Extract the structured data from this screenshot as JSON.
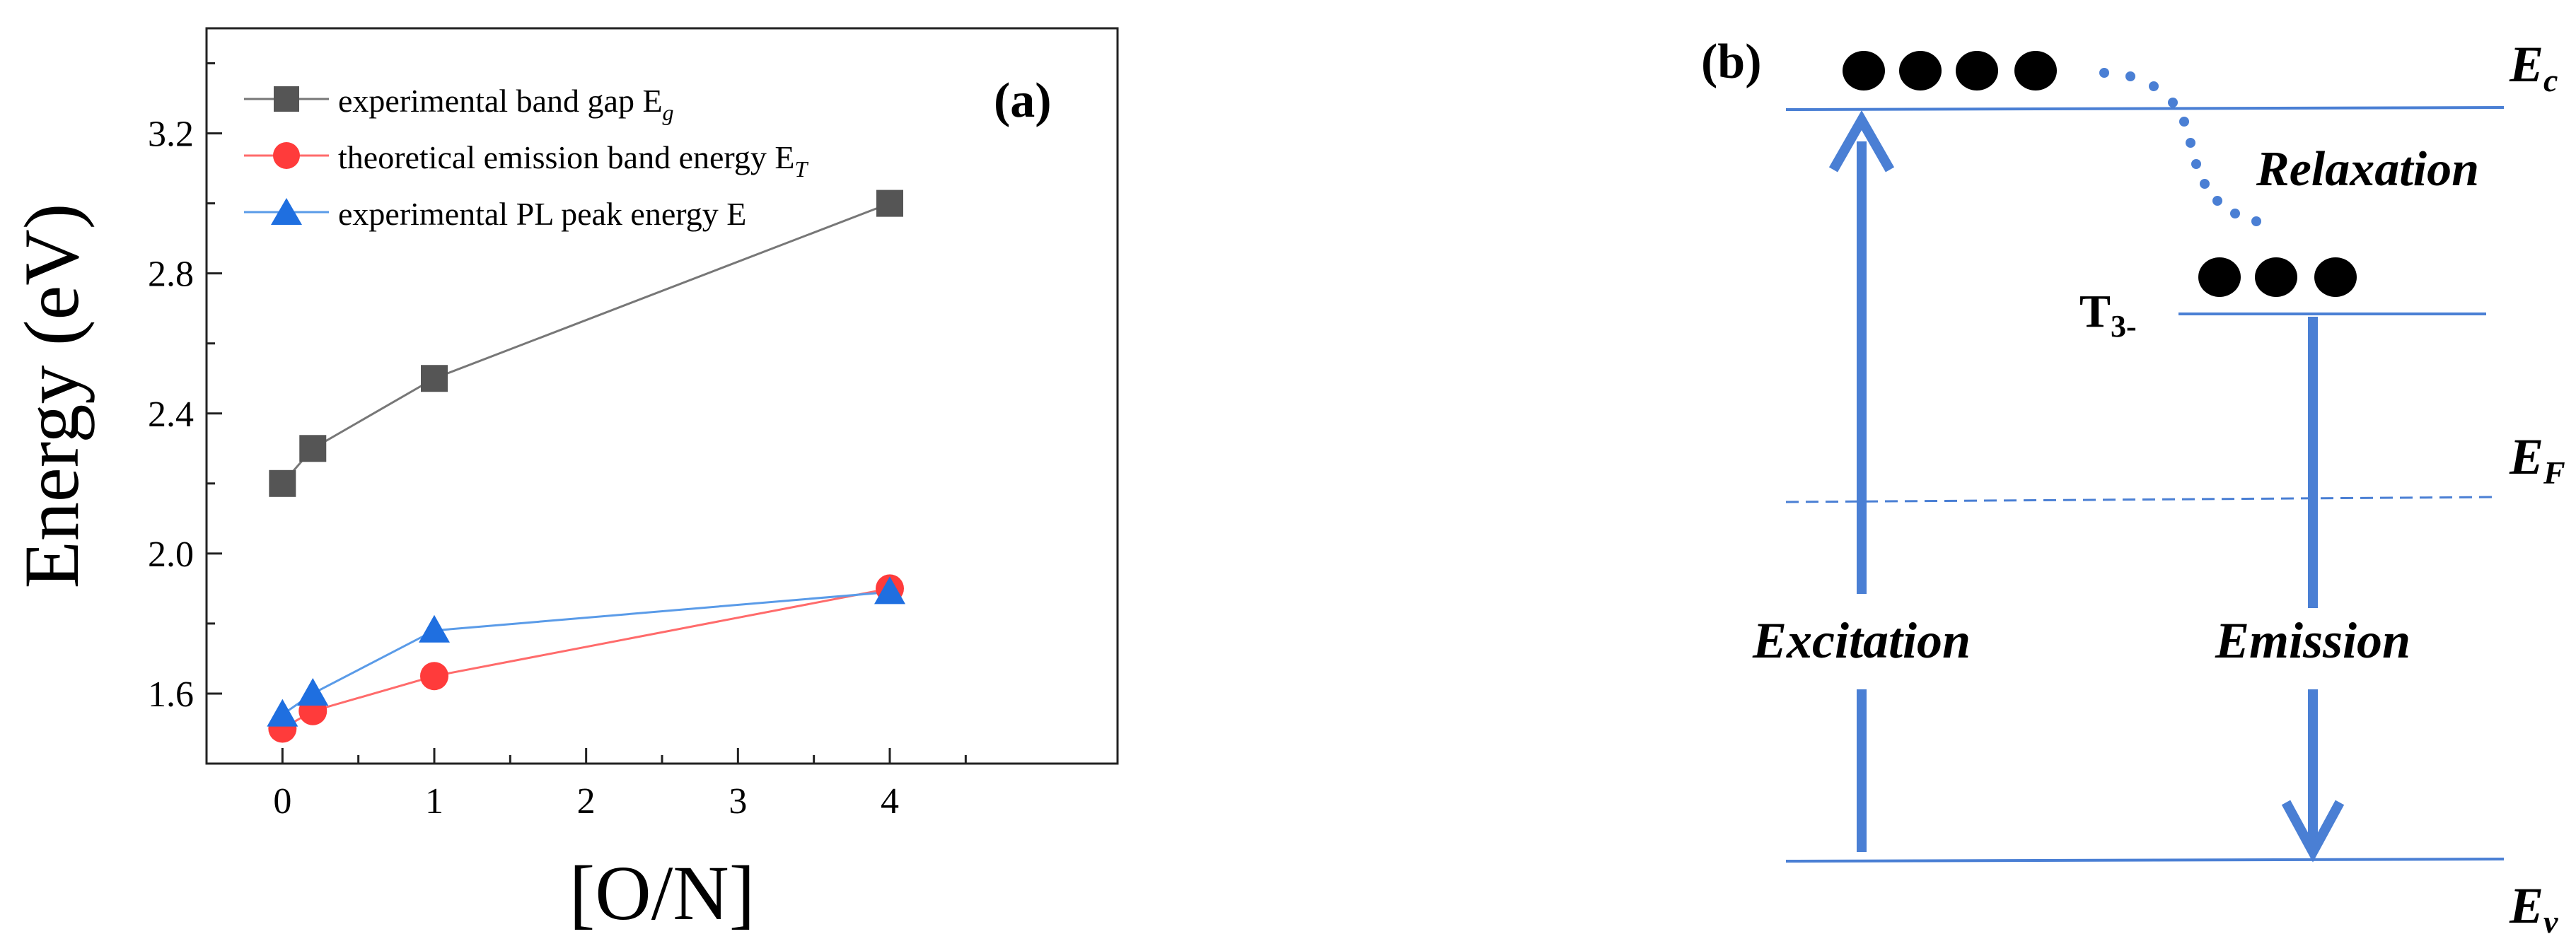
{
  "chart_data": [
    {
      "type": "line",
      "panel_label": "(a)",
      "xlabel": "[O/N]",
      "ylabel": "Energy (eV)",
      "xlim": [
        -0.5,
        5.5
      ],
      "ylim": [
        1.4,
        3.5
      ],
      "x_ticks": [
        "0",
        "1",
        "2",
        "3",
        "4"
      ],
      "y_ticks": [
        "1.6",
        "2.0",
        "2.4",
        "2.8",
        "3.2"
      ],
      "grid": false,
      "legend_position": "top-left",
      "x": [
        0,
        0.2,
        1,
        4
      ],
      "series": [
        {
          "name": "experimental band gap E",
          "name_subscript": "g",
          "marker": "square",
          "color": "#555555",
          "line_color": "#777777",
          "values": [
            2.2,
            2.3,
            2.5,
            3.0
          ]
        },
        {
          "name": "theoretical emission band energy E",
          "name_subscript": "T",
          "marker": "circle",
          "color": "#ff3b3b",
          "line_color": "#ff6b6b",
          "values": [
            1.5,
            1.55,
            1.65,
            1.9
          ]
        },
        {
          "name": "experimental PL peak energy E",
          "name_subscript": "",
          "marker": "triangle",
          "color": "#1f6fe0",
          "line_color": "#5a9be8",
          "values": [
            1.54,
            1.6,
            1.78,
            1.89
          ]
        }
      ]
    },
    {
      "type": "diagram",
      "panel_label": "(b)",
      "levels": {
        "ec": {
          "label": "E",
          "subscript": "c"
        },
        "ef": {
          "label": "E",
          "subscript": "F"
        },
        "ev": {
          "label": "E",
          "subscript": "v"
        },
        "t3": {
          "label": "T",
          "subscript": "3-"
        }
      },
      "arrows": {
        "excitation": "Excitation",
        "emission": "Emission",
        "relaxation": "Relaxation"
      },
      "electrons_on_ec": 4,
      "electrons_on_t3": 3,
      "line_color": "#4a7fd4"
    }
  ]
}
